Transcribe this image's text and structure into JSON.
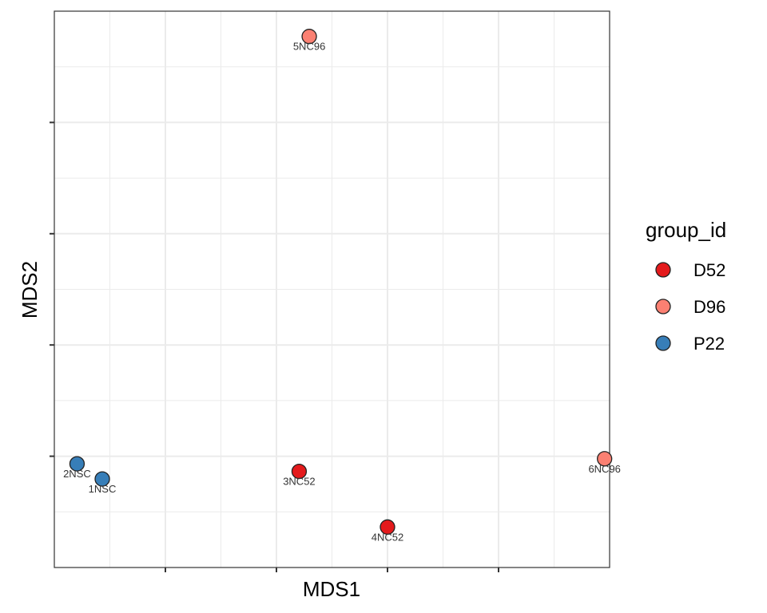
{
  "chart_data": {
    "type": "scatter",
    "title": "",
    "xlabel": "MDS1",
    "ylabel": "MDS2",
    "xlim": [
      -0.05,
      1.05
    ],
    "ylim": [
      -0.05,
      1.05
    ],
    "grid": true,
    "tick_labels_shown": false,
    "legend_position": "right",
    "legend_title": "group_id",
    "groups": [
      {
        "name": "D52",
        "color": "#e41a1c"
      },
      {
        "name": "D96",
        "color": "#fb8072"
      },
      {
        "name": "P22",
        "color": "#377eb8"
      }
    ],
    "points": [
      {
        "label": "1NSC",
        "group": "P22",
        "x": 0.045,
        "y": 0.125
      },
      {
        "label": "2NSC",
        "group": "P22",
        "x": -0.005,
        "y": 0.155
      },
      {
        "label": "3NC52",
        "group": "D52",
        "x": 0.435,
        "y": 0.14
      },
      {
        "label": "4NC52",
        "group": "D52",
        "x": 0.61,
        "y": 0.03
      },
      {
        "label": "5NC96",
        "group": "D96",
        "x": 0.455,
        "y": 1.0
      },
      {
        "label": "6NC96",
        "group": "D96",
        "x": 1.04,
        "y": 0.165
      }
    ]
  }
}
